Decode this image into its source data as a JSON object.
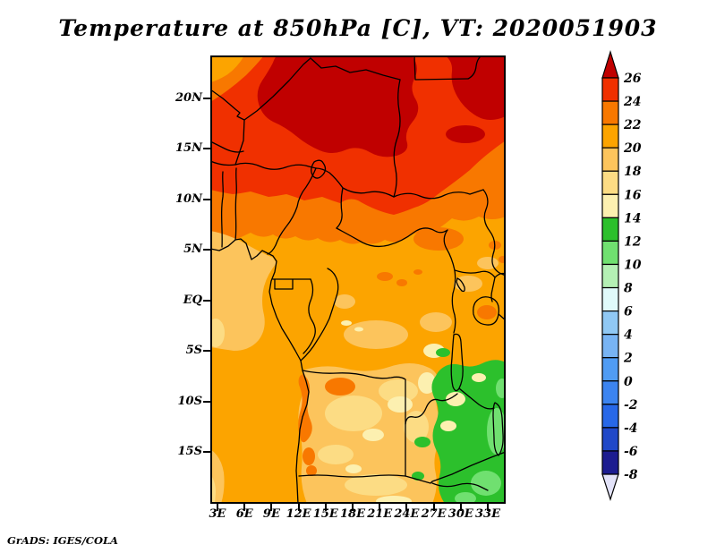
{
  "title": "Temperature at 850hPa [C], VT: 2020051903",
  "attribution": "GrADS: IGES/COLA",
  "axes": {
    "lat": {
      "labels": [
        "20N",
        "15N",
        "10N",
        "5N",
        "EQ",
        "5S",
        "10S",
        "15S"
      ]
    },
    "lon": {
      "labels": [
        "3E",
        "6E",
        "9E",
        "12E",
        "15E",
        "18E",
        "21E",
        "24E",
        "27E",
        "30E",
        "33E"
      ]
    }
  },
  "palette": {
    "gt26": "#C00000",
    "t24_26": "#F03000",
    "t22_24": "#F87800",
    "t20_22": "#FCA400",
    "t18_20": "#FCC45C",
    "t16_18": "#FCDC84",
    "t14_16": "#FCF0B0",
    "t12_14": "#2CC02C",
    "t10_12": "#70E070",
    "t8_10": "#B4F0B4",
    "t6_8": "#E0FAFA",
    "t4_6": "#90C8F4",
    "t2_4": "#78B4F4",
    "t0_2": "#509CF4",
    "tm2_0": "#3C84F0",
    "tm4_m2": "#2868E8",
    "tm6_m4": "#2048C8",
    "tm8_m6": "#1C1C90",
    "ltm8": "#E2E2F8"
  },
  "colorbar": {
    "labels": [
      "26",
      "24",
      "22",
      "20",
      "18",
      "16",
      "14",
      "12",
      "10",
      "8",
      "6",
      "4",
      "2",
      "0",
      "-2",
      "-4",
      "-6",
      "-8"
    ],
    "segment_keys_top_to_bottom": [
      "t24_26",
      "t22_24",
      "t20_22",
      "t18_20",
      "t16_18",
      "t14_16",
      "t12_14",
      "t10_12",
      "t8_10",
      "t6_8",
      "t4_6",
      "t2_4",
      "t0_2",
      "tm2_0",
      "tm4_m2",
      "tm6_m4",
      "tm8_m6"
    ],
    "above_key": "gt26",
    "below_key": "ltm8"
  },
  "chart_data": {
    "type": "heatmap",
    "title": "Temperature at 850hPa [C], VT: 2020051903",
    "variable": "Air temperature at 850 hPa",
    "units": "C",
    "valid_time": "2020051903",
    "projection": "lat-lon map of Central Africa",
    "x_axis": {
      "ticks": [
        "3E",
        "6E",
        "9E",
        "12E",
        "15E",
        "18E",
        "21E",
        "24E",
        "27E",
        "30E",
        "33E"
      ],
      "range_deg_east": [
        2,
        35
      ]
    },
    "y_axis": {
      "ticks": [
        "20N",
        "15N",
        "10N",
        "5N",
        "EQ",
        "5S",
        "10S",
        "15S"
      ],
      "range_deg_north": [
        -20.3,
        24.3
      ]
    },
    "contour_levels_C": [
      -8,
      -6,
      -4,
      -2,
      0,
      2,
      4,
      6,
      8,
      10,
      12,
      14,
      16,
      18,
      20,
      22,
      24,
      26
    ],
    "palette_low_to_high": [
      "#E2E2F8",
      "#1C1C90",
      "#2048C8",
      "#2868E8",
      "#3C84F0",
      "#509CF4",
      "#78B4F4",
      "#90C8F4",
      "#E0FAFA",
      "#B4F0B4",
      "#70E070",
      "#2CC02C",
      "#FCF0B0",
      "#FCDC84",
      "#FCC45C",
      "#FCA400",
      "#F87800",
      "#F03000",
      "#C00000"
    ],
    "legend_position": "right colorbar with open arrow ends",
    "grid": false,
    "field_summary": [
      {
        "region": "Sahara / northern Sahel (14N-24N, Niger-Chad-Sudan)",
        "temp_C": "24 to >26"
      },
      {
        "region": "Sahel belt (10N-14N)",
        "temp_C": "22 to 24"
      },
      {
        "region": "Guinea coast, Congo basin and equatorial belt (8S-10N)",
        "temp_C": "18 to 22"
      },
      {
        "region": "Central African Republic patch and spots near Lake Victoria",
        "temp_C": "22 to 24"
      },
      {
        "region": "Angola coastal strip (Benguela area)",
        "temp_C": "22 to 24 narrow warm strip"
      },
      {
        "region": "Southern plateau Angola/Zambia (8S-18S)",
        "temp_C": "14 to 18"
      },
      {
        "region": "SE highlands Tanzania/Zambia/Malawi (bottom-right)",
        "temp_C": "8 to 14 (greens)"
      },
      {
        "region": "Ocean bottom-left corner",
        "temp_C": "16 to 18"
      }
    ],
    "attribution": "GrADS: IGES/COLA"
  }
}
